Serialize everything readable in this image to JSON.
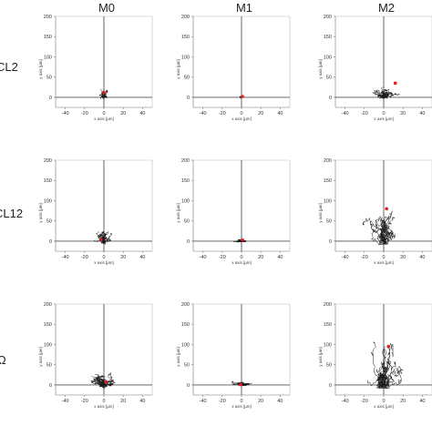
{
  "columns": [
    "M0",
    "M1",
    "M2"
  ],
  "rows": [
    "CL2",
    "CL12",
    "Ω"
  ],
  "chart_data": {
    "type": "scatter",
    "layout_grid": "3x3 small multiples (trajectory plots)",
    "xlabel": "x axis [µm]",
    "ylabel": "y axis [µm]",
    "xlim": [
      -50,
      50
    ],
    "ylim": [
      -25,
      200
    ],
    "xticks": [
      -40,
      -20,
      0,
      20,
      40
    ],
    "yticks": [
      0,
      50,
      100,
      150,
      200
    ],
    "grid": false,
    "colors": {
      "trajectory": "#1a1a1a",
      "center_of_mass": "#e02020",
      "axis": "#555555",
      "frame": "#bbbbbb"
    },
    "panels": [
      {
        "row": "CL2",
        "col": "M0",
        "spread_x": 6,
        "reach_y": 30,
        "com": [
          0,
          12
        ]
      },
      {
        "row": "CL2",
        "col": "M1",
        "spread_x": 2,
        "reach_y": 4,
        "com": [
          1,
          2
        ]
      },
      {
        "row": "CL2",
        "col": "M2",
        "spread_x": 22,
        "reach_y": 40,
        "com": [
          12,
          35
        ]
      },
      {
        "row": "CL12",
        "col": "M0",
        "spread_x": 16,
        "reach_y": 45,
        "com": [
          -3,
          3
        ]
      },
      {
        "row": "CL12",
        "col": "M1",
        "spread_x": 14,
        "reach_y": 10,
        "com": [
          1,
          3
        ]
      },
      {
        "row": "CL12",
        "col": "M2",
        "spread_x": 30,
        "reach_y": 120,
        "com": [
          3,
          80
        ]
      },
      {
        "row": "Ω",
        "col": "M0",
        "spread_x": 30,
        "reach_y": 45,
        "com": [
          2,
          8
        ]
      },
      {
        "row": "Ω",
        "col": "M1",
        "spread_x": 14,
        "reach_y": 12,
        "com": [
          -1,
          1
        ]
      },
      {
        "row": "Ω",
        "col": "M2",
        "spread_x": 30,
        "reach_y": 170,
        "com": [
          5,
          95
        ]
      }
    ]
  }
}
